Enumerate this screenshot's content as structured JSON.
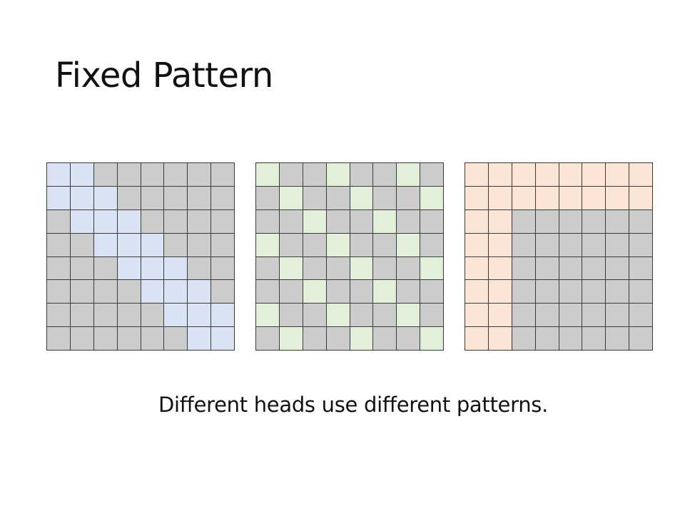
{
  "slide": {
    "title": "Fixed Pattern",
    "caption": "Different heads use different patterns."
  },
  "colors": {
    "inactive": "#cccccc",
    "grid_line": "#3a3a3a",
    "local_active": "#dae3f3",
    "stride_active": "#e2f0d9",
    "global_active": "#fbe5d6"
  },
  "patterns": [
    {
      "id": "local",
      "rows": 8,
      "cols": 8,
      "active": [
        [
          1,
          1,
          0,
          0,
          0,
          0,
          0,
          0
        ],
        [
          1,
          1,
          1,
          0,
          0,
          0,
          0,
          0
        ],
        [
          0,
          1,
          1,
          1,
          0,
          0,
          0,
          0
        ],
        [
          0,
          0,
          1,
          1,
          1,
          0,
          0,
          0
        ],
        [
          0,
          0,
          0,
          1,
          1,
          1,
          0,
          0
        ],
        [
          0,
          0,
          0,
          0,
          1,
          1,
          1,
          0
        ],
        [
          0,
          0,
          0,
          0,
          0,
          1,
          1,
          1
        ],
        [
          0,
          0,
          0,
          0,
          0,
          0,
          1,
          1
        ]
      ]
    },
    {
      "id": "stride",
      "rows": 8,
      "cols": 8,
      "active": [
        [
          1,
          0,
          0,
          1,
          0,
          0,
          1,
          0
        ],
        [
          0,
          1,
          0,
          0,
          1,
          0,
          0,
          1
        ],
        [
          0,
          0,
          1,
          0,
          0,
          1,
          0,
          0
        ],
        [
          1,
          0,
          0,
          1,
          0,
          0,
          1,
          0
        ],
        [
          0,
          1,
          0,
          0,
          1,
          0,
          0,
          1
        ],
        [
          0,
          0,
          1,
          0,
          0,
          1,
          0,
          0
        ],
        [
          1,
          0,
          0,
          1,
          0,
          0,
          1,
          0
        ],
        [
          0,
          1,
          0,
          0,
          1,
          0,
          0,
          1
        ]
      ]
    },
    {
      "id": "global",
      "rows": 8,
      "cols": 8,
      "active": [
        [
          1,
          1,
          1,
          1,
          1,
          1,
          1,
          1
        ],
        [
          1,
          1,
          1,
          1,
          1,
          1,
          1,
          1
        ],
        [
          1,
          1,
          0,
          0,
          0,
          0,
          0,
          0
        ],
        [
          1,
          1,
          0,
          0,
          0,
          0,
          0,
          0
        ],
        [
          1,
          1,
          0,
          0,
          0,
          0,
          0,
          0
        ],
        [
          1,
          1,
          0,
          0,
          0,
          0,
          0,
          0
        ],
        [
          1,
          1,
          0,
          0,
          0,
          0,
          0,
          0
        ],
        [
          1,
          1,
          0,
          0,
          0,
          0,
          0,
          0
        ]
      ]
    }
  ]
}
